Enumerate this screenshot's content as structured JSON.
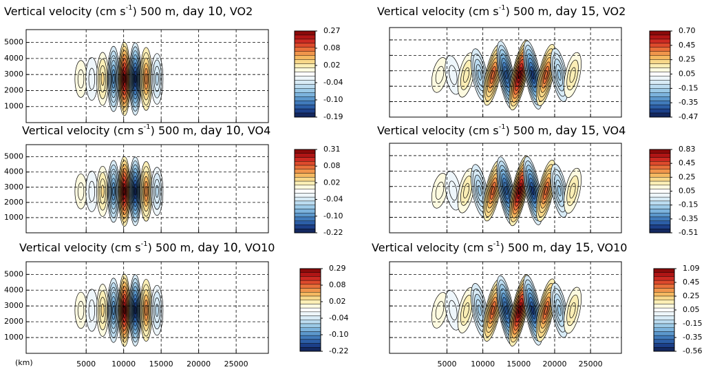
{
  "colormap": [
    "#8b0a0a",
    "#b01515",
    "#cc2a22",
    "#dd4a2c",
    "#e8703a",
    "#f0954b",
    "#f5b961",
    "#f8d88a",
    "#fbeeb5",
    "#fdfae0",
    "#ffffff",
    "#eef6fb",
    "#d8ebf6",
    "#bcdcf0",
    "#9ccae7",
    "#7cb3dc",
    "#5c98cc",
    "#417bbb",
    "#2c5ea6",
    "#1c3f88",
    "#14285f"
  ],
  "chart_data": [
    {
      "type": "contour",
      "title": [
        "Vertical velocity (cm s",
        "-1",
        ") 500 m, ",
        "day 10",
        ", VO2"
      ],
      "xlim": [
        -3000,
        29300
      ],
      "ylim": [
        0,
        5800
      ],
      "xticks": [
        5000,
        10000,
        15000,
        20000,
        25000
      ],
      "yticks": [
        1000,
        2000,
        3000,
        4000,
        5000
      ],
      "grid": true,
      "ytick_labels": true,
      "xtick_labels": false,
      "colorbar_ticks": [
        0.27,
        0.08,
        0.02,
        -0.04,
        {
          "value": -0.1,
          "label": "-0.10"
        },
        -0.19
      ]
    },
    {
      "type": "contour",
      "title": [
        "Vertical velocity (cm s",
        "-1",
        ") 500 m, ",
        "day 15",
        ", VO2"
      ],
      "xlim": [
        -3000,
        29300
      ],
      "ylim": [
        0,
        5800
      ],
      "xticks": [
        5000,
        10000,
        15000,
        20000,
        25000
      ],
      "yticks": [
        1000,
        2000,
        3000,
        4000,
        5000
      ],
      "grid": true,
      "ytick_labels": false,
      "xtick_labels": false,
      "colorbar_ticks": [
        {
          "value": 0.7,
          "label": "0.70"
        },
        0.45,
        0.25,
        0.05,
        -0.15,
        -0.35,
        -0.47
      ]
    },
    {
      "type": "contour",
      "title": [
        "Vertical velocity (cm s",
        "-1",
        ") 500 m, ",
        "day 10",
        ", VO4"
      ],
      "xlim": [
        -3000,
        29300
      ],
      "ylim": [
        0,
        5800
      ],
      "xticks": [
        5000,
        10000,
        15000,
        20000,
        25000
      ],
      "yticks": [
        1000,
        2000,
        3000,
        4000,
        5000
      ],
      "grid": true,
      "ytick_labels": true,
      "xtick_labels": false,
      "colorbar_ticks": [
        0.31,
        0.08,
        0.02,
        -0.04,
        {
          "value": -0.1,
          "label": "-0.10"
        },
        -0.22
      ]
    },
    {
      "type": "contour",
      "title": [
        "Vertical velocity (cm s",
        "-1",
        ") 500 m, ",
        "day 15",
        ", VO4"
      ],
      "xlim": [
        -3000,
        29300
      ],
      "ylim": [
        0,
        5800
      ],
      "xticks": [
        5000,
        10000,
        15000,
        20000,
        25000
      ],
      "yticks": [
        1000,
        2000,
        3000,
        4000,
        5000
      ],
      "grid": true,
      "ytick_labels": false,
      "xtick_labels": false,
      "colorbar_ticks": [
        0.83,
        0.45,
        0.25,
        0.05,
        -0.15,
        -0.35,
        -0.51
      ]
    },
    {
      "type": "contour",
      "title": [
        "Vertical velocity (cm s",
        "-1",
        ") 500 m, ",
        "day 10",
        ", VO10"
      ],
      "xlim": [
        -3000,
        29300
      ],
      "ylim": [
        0,
        5800
      ],
      "xticks": [
        5000,
        10000,
        15000,
        20000,
        25000
      ],
      "yticks": [
        1000,
        2000,
        3000,
        4000,
        5000
      ],
      "grid": true,
      "ytick_labels": true,
      "xtick_labels": true,
      "xlabel": "(km)",
      "colorbar_ticks": [
        0.29,
        0.08,
        0.02,
        -0.04,
        {
          "value": -0.1,
          "label": "-0.10"
        },
        -0.22
      ]
    },
    {
      "type": "contour",
      "title": [
        "Vertical velocity (cm s",
        "-1",
        ") 500 m, ",
        "day 15",
        ", VO10"
      ],
      "xlim": [
        -3000,
        29300
      ],
      "ylim": [
        0,
        5800
      ],
      "xticks": [
        5000,
        10000,
        15000,
        20000,
        25000
      ],
      "yticks": [
        1000,
        2000,
        3000,
        4000,
        5000
      ],
      "grid": true,
      "ytick_labels": false,
      "xtick_labels": true,
      "colorbar_ticks": [
        1.09,
        0.45,
        0.25,
        0.05,
        -0.15,
        -0.35,
        -0.56
      ]
    }
  ]
}
